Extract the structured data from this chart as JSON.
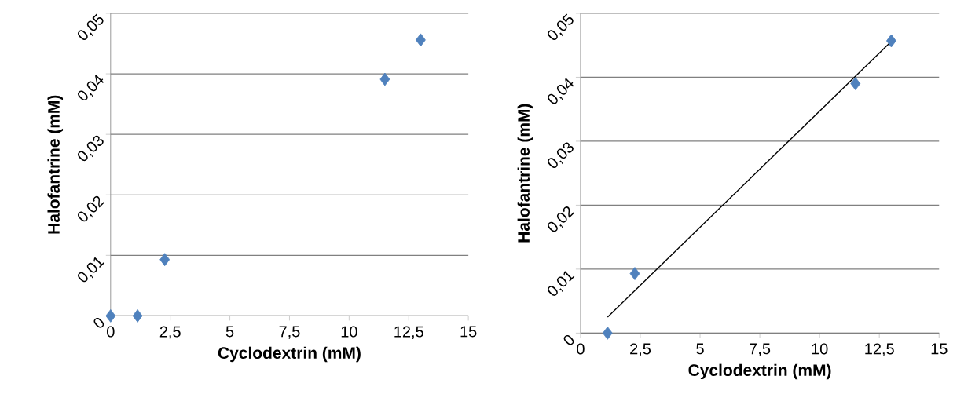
{
  "chart_data": [
    {
      "type": "scatter",
      "xlabel": "Cyclodextrin (mM)",
      "ylabel": "Halofantrine (mM)",
      "xlim": [
        0,
        15
      ],
      "ylim": [
        0,
        0.05
      ],
      "xticks": [
        0,
        {
          "value": 2.5,
          "label": "2,5"
        },
        5,
        {
          "value": 7.5,
          "label": "7,5"
        },
        10,
        {
          "value": 12.5,
          "label": "12,5"
        },
        15
      ],
      "yticks": [
        0,
        {
          "value": 0.01,
          "label": "0,01"
        },
        {
          "value": 0.02,
          "label": "0,02"
        },
        {
          "value": 0.03,
          "label": "0,03"
        },
        {
          "value": 0.04,
          "label": "0,04"
        },
        {
          "value": 0.05,
          "label": "0,05"
        }
      ],
      "grid": "y",
      "marker": "diamond",
      "series": [
        {
          "color": "#4f81bd",
          "x": [
            0,
            1.13,
            2.27,
            11.5,
            13
          ],
          "values": [
            0,
            0,
            0.0093,
            0.0391,
            0.0456
          ]
        }
      ]
    },
    {
      "type": "scatter",
      "xlabel": "Cyclodextrin (mM)",
      "ylabel": "Halofantrine (mM)",
      "xlim": [
        0,
        15
      ],
      "ylim": [
        0,
        0.05
      ],
      "xticks": [
        0,
        {
          "value": 2.5,
          "label": "2,5"
        },
        5,
        {
          "value": 7.5,
          "label": "7,5"
        },
        10,
        {
          "value": 12.5,
          "label": "12,5"
        },
        15
      ],
      "yticks": [
        0,
        {
          "value": 0.01,
          "label": "0,01"
        },
        {
          "value": 0.02,
          "label": "0,02"
        },
        {
          "value": 0.03,
          "label": "0,03"
        },
        {
          "value": 0.04,
          "label": "0,04"
        },
        {
          "value": 0.05,
          "label": "0,05"
        }
      ],
      "grid": "y",
      "marker": "diamond",
      "series": [
        {
          "color": "#4f81bd",
          "x": [
            1.13,
            2.27,
            11.5,
            13
          ],
          "values": [
            0,
            0.0093,
            0.039,
            0.0457
          ]
        },
        {
          "type": "line",
          "color": "#000000",
          "marker": "none",
          "x": [
            1.13,
            13
          ],
          "values": [
            0.0025,
            0.0456
          ]
        }
      ]
    }
  ]
}
